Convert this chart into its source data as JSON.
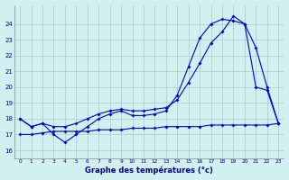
{
  "title": "Graphe des températures (°c)",
  "background_color": "#d1f0f0",
  "grid_color": "#aacccc",
  "line_color": "#0000cc",
  "xlim": [
    -0.5,
    23.5
  ],
  "ylim": [
    15.5,
    25.2
  ],
  "yticks": [
    16,
    17,
    18,
    19,
    20,
    21,
    22,
    23,
    24
  ],
  "xticks": [
    0,
    1,
    2,
    3,
    4,
    5,
    6,
    7,
    8,
    9,
    10,
    11,
    12,
    13,
    14,
    15,
    16,
    17,
    18,
    19,
    20,
    21,
    22,
    23
  ],
  "hours": [
    0,
    1,
    2,
    3,
    4,
    5,
    6,
    7,
    8,
    9,
    10,
    11,
    12,
    13,
    14,
    15,
    16,
    17,
    18,
    19,
    20,
    21,
    22,
    23
  ],
  "line1": [
    18.0,
    17.5,
    17.7,
    17.0,
    16.5,
    17.0,
    17.5,
    18.0,
    18.3,
    18.5,
    18.2,
    18.2,
    18.3,
    18.5,
    19.5,
    21.3,
    23.1,
    24.0,
    24.3,
    24.2,
    24.0,
    20.0,
    19.8,
    17.7
  ],
  "line2": [
    18.0,
    17.5,
    17.7,
    17.5,
    17.5,
    17.7,
    18.0,
    18.3,
    18.5,
    18.6,
    18.5,
    18.5,
    18.6,
    18.7,
    19.2,
    20.3,
    21.5,
    22.8,
    23.5,
    24.5,
    24.0,
    22.5,
    20.0,
    17.7
  ],
  "line3": [
    17.0,
    17.0,
    17.1,
    17.2,
    17.2,
    17.2,
    17.2,
    17.3,
    17.3,
    17.3,
    17.4,
    17.4,
    17.4,
    17.5,
    17.5,
    17.5,
    17.5,
    17.6,
    17.6,
    17.6,
    17.6,
    17.6,
    17.6,
    17.7
  ]
}
